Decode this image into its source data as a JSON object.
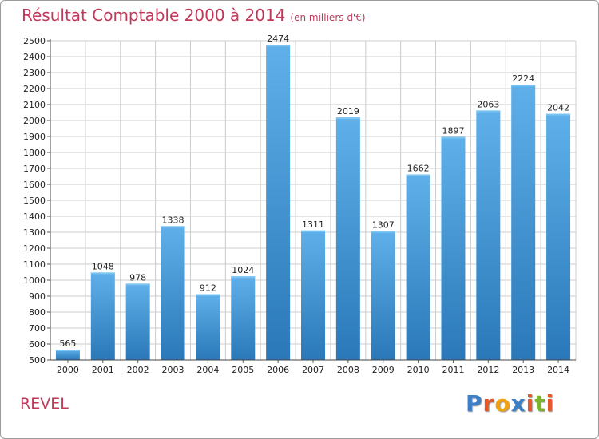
{
  "header": {
    "title": "Résultat Comptable 2000 à 2014",
    "subtitle": "(en milliers d'€)"
  },
  "footer": {
    "town": "REVEL",
    "logo_text": "Proxiti"
  },
  "colors": {
    "title": "#c0395a",
    "bar_top": "#5fb0ea",
    "bar_bottom": "#2a78b8",
    "grid": "#cccccc"
  },
  "chart_data": {
    "type": "bar",
    "title": "Résultat Comptable 2000 à 2014",
    "unit_label": "(en milliers d'€)",
    "categories": [
      "2000",
      "2001",
      "2002",
      "2003",
      "2004",
      "2005",
      "2006",
      "2007",
      "2008",
      "2009",
      "2010",
      "2011",
      "2012",
      "2013",
      "2014"
    ],
    "values": [
      565,
      1048,
      978,
      1338,
      912,
      1024,
      2474,
      1311,
      2019,
      1307,
      1662,
      1897,
      2063,
      2224,
      2042
    ],
    "ylim": [
      500,
      2500
    ],
    "ytick_step": 100,
    "yticks": [
      500,
      600,
      700,
      800,
      900,
      1000,
      1100,
      1200,
      1300,
      1400,
      1500,
      1600,
      1700,
      1800,
      1900,
      2000,
      2100,
      2200,
      2300,
      2400,
      2500
    ],
    "xlabel": "",
    "ylabel": "",
    "grid": true
  }
}
